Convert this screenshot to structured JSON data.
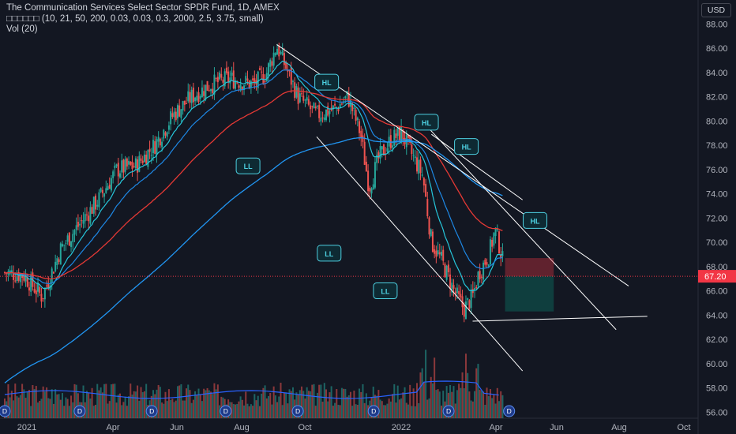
{
  "header": {
    "title": "The Communication Services Select Sector SPDR Fund, 1D, AMEX",
    "indicator": "□□□□□□ (10, 21, 50, 200, 0.03, 0.03, 0.3, 2000, 2.5, 3.75, small)",
    "volume": "Vol (20)"
  },
  "currency_label": "USD",
  "colors": {
    "background": "#131722",
    "up_candle": "#26a69a",
    "down_candle": "#ef5350",
    "ema_fast": "#26c6da",
    "ema_mid": "#1e88e5",
    "ma_50": "#e53935",
    "ma_200": "#2196f3",
    "trendline": "#ffffff",
    "price_tag": "#f23645",
    "volume_ma": "#2962ff",
    "label_border": "#4dd0e1",
    "label_fill": "#0e2a33"
  },
  "chart_data": {
    "type": "candlestick",
    "series_name": "The Communication Services Select Sector SPDR Fund",
    "timeframe": "1D",
    "exchange": "AMEX",
    "y_ticks": [
      "56.00",
      "58.00",
      "60.00",
      "62.00",
      "64.00",
      "66.00",
      "68.00",
      "70.00",
      "72.00",
      "74.00",
      "76.00",
      "78.00",
      "80.00",
      "82.00",
      "84.00",
      "86.00",
      "88.00"
    ],
    "ylim": [
      55.5,
      88.8
    ],
    "x_ticks": [
      "2021",
      "Apr",
      "Jun",
      "Aug",
      "Oct",
      "2022",
      "Apr",
      "Jun",
      "Aug",
      "Oct"
    ],
    "last_price": "67.20",
    "price_anchors": [
      {
        "d": 0,
        "p": 67.5
      },
      {
        "d": 15,
        "p": 67.3
      },
      {
        "d": 30,
        "p": 65.5
      },
      {
        "d": 45,
        "p": 69.5
      },
      {
        "d": 60,
        "p": 71.5
      },
      {
        "d": 75,
        "p": 73.5
      },
      {
        "d": 90,
        "p": 76.0
      },
      {
        "d": 105,
        "p": 76.3
      },
      {
        "d": 120,
        "p": 78.0
      },
      {
        "d": 135,
        "p": 80.5
      },
      {
        "d": 150,
        "p": 82.0
      },
      {
        "d": 165,
        "p": 83.0
      },
      {
        "d": 180,
        "p": 83.5
      },
      {
        "d": 200,
        "p": 83.0
      },
      {
        "d": 210,
        "p": 84.0
      },
      {
        "d": 218,
        "p": 86.2
      },
      {
        "d": 225,
        "p": 84.5
      },
      {
        "d": 235,
        "p": 82.0
      },
      {
        "d": 250,
        "p": 80.5
      },
      {
        "d": 265,
        "p": 81.0
      },
      {
        "d": 275,
        "p": 82.0
      },
      {
        "d": 285,
        "p": 79.0
      },
      {
        "d": 292,
        "p": 74.5
      },
      {
        "d": 300,
        "p": 77.0
      },
      {
        "d": 310,
        "p": 78.5
      },
      {
        "d": 318,
        "p": 79.0
      },
      {
        "d": 325,
        "p": 77.5
      },
      {
        "d": 335,
        "p": 75.5
      },
      {
        "d": 342,
        "p": 70.0
      },
      {
        "d": 350,
        "p": 68.5
      },
      {
        "d": 360,
        "p": 66.0
      },
      {
        "d": 368,
        "p": 64.5
      },
      {
        "d": 375,
        "p": 65.5
      },
      {
        "d": 380,
        "p": 67.5
      },
      {
        "d": 388,
        "p": 69.0
      },
      {
        "d": 393,
        "p": 71.0
      },
      {
        "d": 397,
        "p": 69.5
      },
      {
        "d": 400,
        "p": 68.0
      }
    ],
    "volume_pattern": "bars along bottom band with spikes near Jan and Mar 2022",
    "pivot_labels": [
      {
        "text": "HL",
        "d": 258,
        "p": 83.2
      },
      {
        "text": "HL",
        "d": 338,
        "p": 79.9
      },
      {
        "text": "HL",
        "d": 370,
        "p": 77.9
      },
      {
        "text": "HL",
        "d": 425,
        "p": 71.8
      },
      {
        "text": "LL",
        "d": 195,
        "p": 76.3
      },
      {
        "text": "LL",
        "d": 260,
        "p": 69.1
      },
      {
        "text": "LL",
        "d": 305,
        "p": 66.0
      }
    ],
    "position_box": {
      "entry": 67.2,
      "stop": 68.7,
      "target": 64.3
    },
    "dividend_markers": [
      "D",
      "D",
      "D",
      "D",
      "D",
      "D",
      "D",
      "D"
    ]
  }
}
